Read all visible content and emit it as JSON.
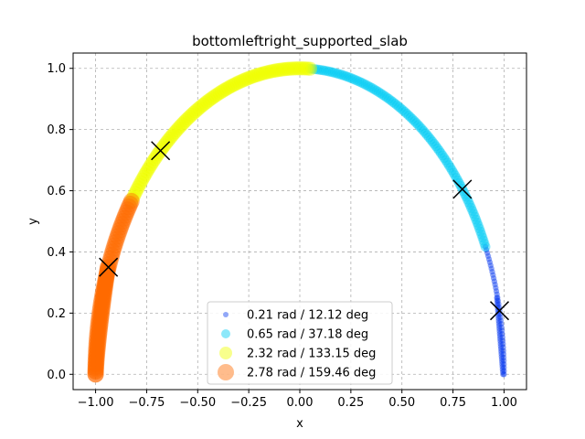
{
  "chart_data": {
    "type": "scatter",
    "title": "bottomleftright_supported_slab",
    "xlabel": "x",
    "ylabel": "y",
    "xlim": [
      -1.11,
      1.11
    ],
    "ylim": [
      -0.05,
      1.05
    ],
    "xticks": [
      "−1.00",
      "−0.75",
      "−0.50",
      "−0.25",
      "0.00",
      "0.25",
      "0.50",
      "0.75",
      "1.00"
    ],
    "xtick_values": [
      -1.0,
      -0.75,
      -0.5,
      -0.25,
      0.0,
      0.25,
      0.5,
      0.75,
      1.0
    ],
    "yticks": [
      "0.0",
      "0.2",
      "0.4",
      "0.6",
      "0.8",
      "1.0"
    ],
    "ytick_values": [
      0.0,
      0.2,
      0.4,
      0.6,
      0.8,
      1.0
    ],
    "grid": true,
    "legend_position": "lower-center",
    "series": [
      {
        "name": "0.21 rad / 12.12 deg",
        "color": "#0a3cf0",
        "marker_scale": 0.35,
        "arc": [
          {
            "theta_start": 0.0,
            "theta_end": 0.43,
            "radius_start": 0.0,
            "radius_end": 0.0
          }
        ]
      },
      {
        "name": "0.65 rad / 37.18 deg",
        "color": "#00ccf5",
        "marker_scale": 0.6,
        "arc": [
          {
            "theta_start": 0.43,
            "theta_end": 1.52,
            "radius_start": 0.0,
            "radius_end": 0.0
          }
        ]
      },
      {
        "name": "2.32 rad / 133.15 deg",
        "color": "#f0ff00",
        "marker_scale": 0.85,
        "arc": [
          {
            "theta_start": 1.52,
            "theta_end": 2.54,
            "radius_start": 0.0,
            "radius_end": 0.0
          }
        ]
      },
      {
        "name": "2.78 rad / 159.46 deg",
        "color": "#ff6a00",
        "marker_scale": 1.0,
        "arc": [
          {
            "theta_start": 2.54,
            "theta_end": 3.1416,
            "radius_start": 0.0,
            "radius_end": 0.0
          }
        ]
      }
    ],
    "markers": [
      {
        "label": "×",
        "x": 0.978,
        "y": 0.208
      },
      {
        "label": "×",
        "x": 0.796,
        "y": 0.605
      },
      {
        "label": "×",
        "x": -0.682,
        "y": 0.731
      },
      {
        "label": "×",
        "x": -0.937,
        "y": 0.35
      }
    ]
  }
}
